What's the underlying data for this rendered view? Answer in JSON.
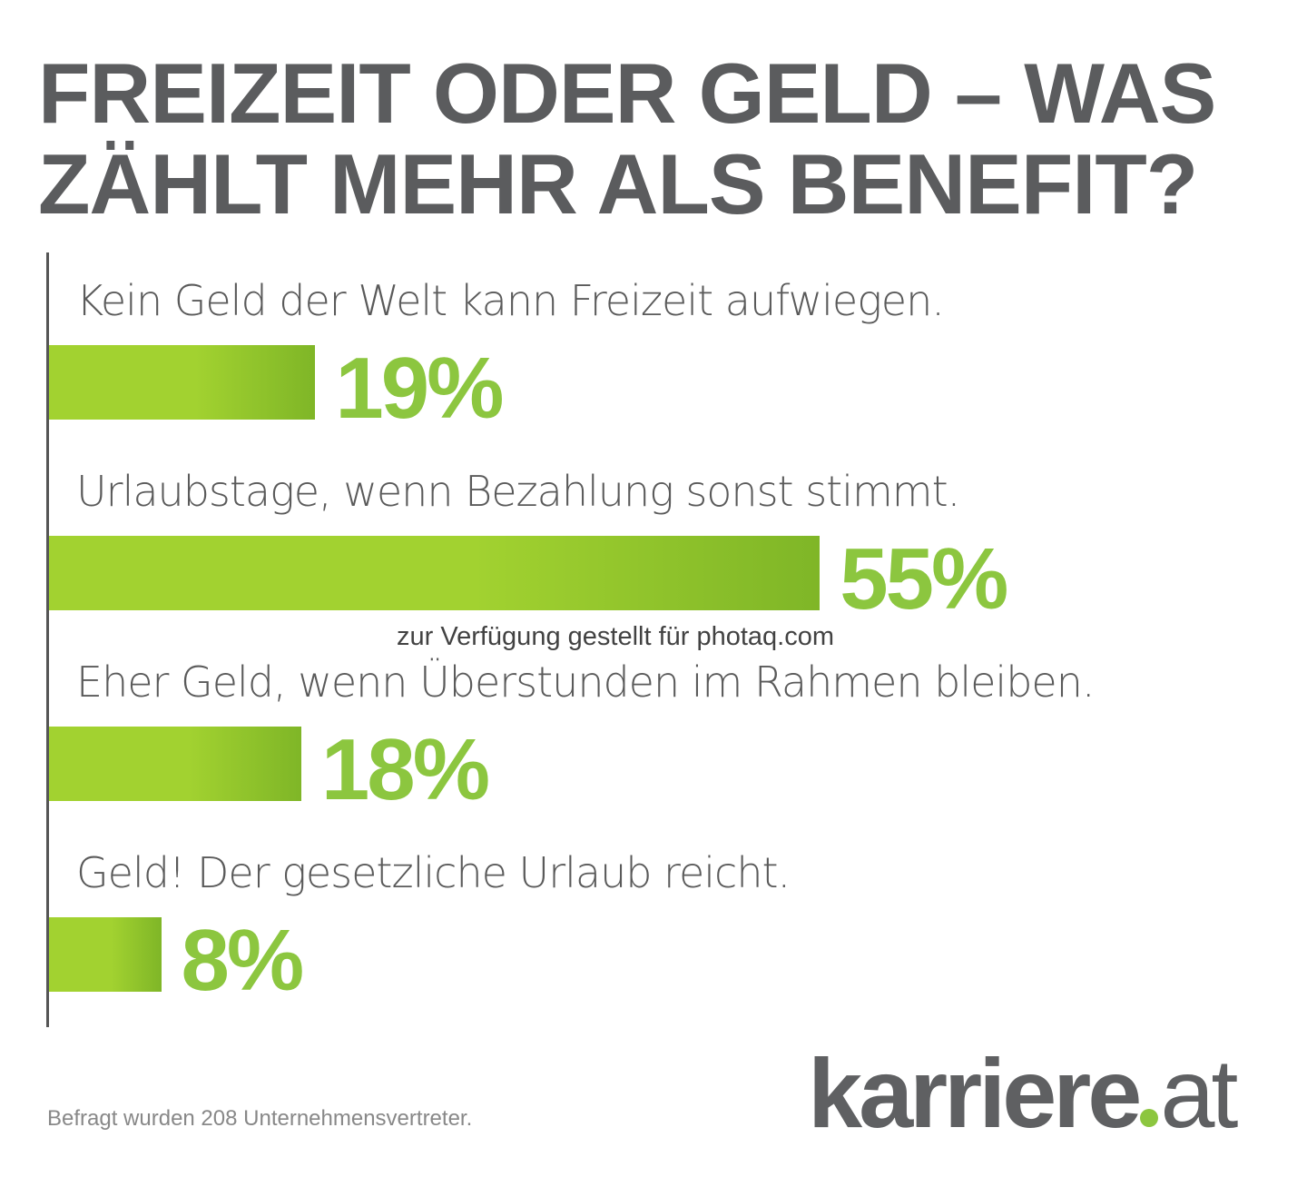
{
  "title_line1": "FREIZEIT ODER GELD – WAS",
  "title_line2": "ZÄHLT MEHR ALS BENEFIT?",
  "chart_data": {
    "type": "bar",
    "orientation": "horizontal",
    "title": "FREIZEIT ODER GELD – WAS ZÄHLT MEHR ALS BENEFIT?",
    "categories": [
      "Kein Geld der Welt kann Freizeit aufwiegen.",
      "Urlaubstage, wenn Bezahlung sonst stimmt.",
      "Eher Geld, wenn Überstunden im Rahmen bleiben.",
      "Geld! Der gesetzliche Urlaub reicht."
    ],
    "values": [
      19,
      55,
      18,
      8
    ],
    "value_labels": [
      "19%",
      "55%",
      "18%",
      "8%"
    ],
    "unit": "%",
    "xlim": [
      0,
      100
    ]
  },
  "footnote": "Befragt wurden 208 Unternehmensvertreter.",
  "logo": {
    "main": "karriere",
    "tld": "at"
  },
  "watermark": "zur Verfügung gestellt für photaq.com",
  "colors": {
    "bar_light": "#a2d230",
    "bar_dark": "#7fb627",
    "pct": "#8cc63f",
    "title": "#5b5c5e"
  }
}
